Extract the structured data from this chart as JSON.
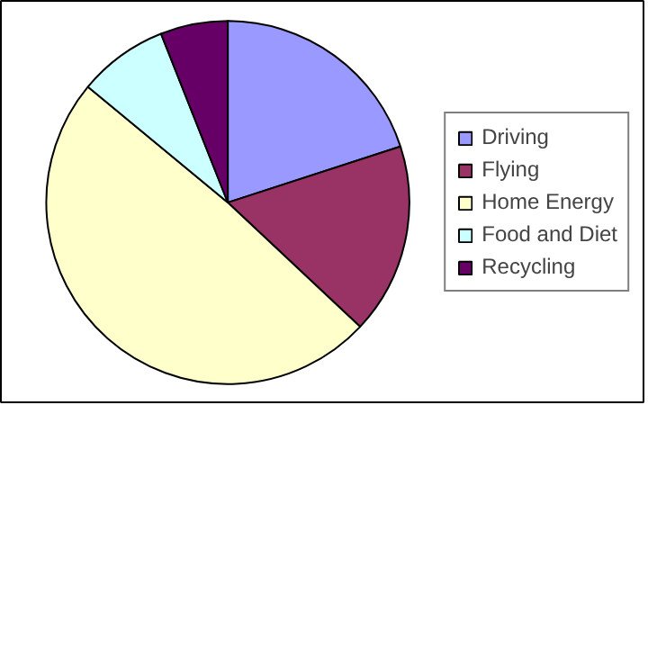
{
  "chart_data": {
    "type": "pie",
    "categories": [
      "Driving",
      "Flying",
      "Home Energy",
      "Food and Diet",
      "Recycling"
    ],
    "values": [
      20,
      17,
      49,
      8,
      6
    ],
    "colors": [
      "#9999ff",
      "#993366",
      "#ffffcc",
      "#ccffff",
      "#660066"
    ],
    "legend": "right"
  }
}
